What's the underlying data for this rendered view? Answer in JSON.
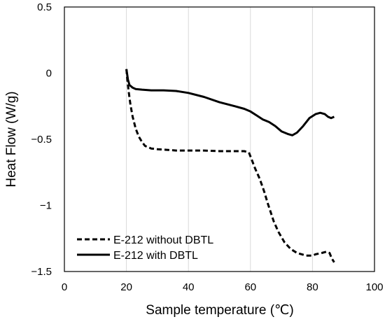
{
  "chart_data": {
    "type": "line",
    "xlabel": "Sample temperature (℃)",
    "ylabel": "Heat Flow (W/g)",
    "xlim": [
      0,
      100
    ],
    "ylim": [
      -1.5,
      0.5
    ],
    "x_ticks": [
      0,
      20,
      40,
      60,
      80,
      100
    ],
    "y_ticks": [
      -1.5,
      -1,
      -0.5,
      0,
      0.5
    ],
    "x_tick_labels": [
      "0",
      "20",
      "40",
      "60",
      "80",
      "100"
    ],
    "y_tick_labels": [
      "−1.5",
      "−1",
      "−0.5",
      "0",
      "0.5"
    ],
    "grid": "vertical",
    "legend_position": "bottom-left",
    "series": [
      {
        "name": "E-212 without DBTL",
        "style": "dashed",
        "color": "#000000",
        "x": [
          20.0,
          20.3,
          20.8,
          21.3,
          22.0,
          23.0,
          24.0,
          25.0,
          26.0,
          28.0,
          30.0,
          33.0,
          36.0,
          40.0,
          45.0,
          50.0,
          55.0,
          58.0,
          59.5,
          60.5,
          61.5,
          63.0,
          64.5,
          65.5,
          66.5,
          67.5,
          69.0,
          71.0,
          73.0,
          75.0,
          78.0,
          80.0,
          81.0,
          83.0,
          84.5,
          85.5,
          86.2,
          87.0
        ],
        "y": [
          0.03,
          -0.05,
          -0.15,
          -0.24,
          -0.33,
          -0.42,
          -0.48,
          -0.52,
          -0.55,
          -0.57,
          -0.575,
          -0.58,
          -0.585,
          -0.585,
          -0.585,
          -0.59,
          -0.59,
          -0.59,
          -0.6,
          -0.66,
          -0.72,
          -0.8,
          -0.9,
          -0.98,
          -1.05,
          -1.12,
          -1.2,
          -1.28,
          -1.33,
          -1.36,
          -1.38,
          -1.38,
          -1.37,
          -1.36,
          -1.35,
          -1.36,
          -1.4,
          -1.43
        ]
      },
      {
        "name": "E-212 with DBTL",
        "style": "solid",
        "color": "#000000",
        "x": [
          20.0,
          20.5,
          21.0,
          22.0,
          23.0,
          25.0,
          28.0,
          32.0,
          36.0,
          40.0,
          45.0,
          50.0,
          55.0,
          58.0,
          60.0,
          62.0,
          64.0,
          66.0,
          68.0,
          70.0,
          72.0,
          73.5,
          75.0,
          77.0,
          79.0,
          81.0,
          82.5,
          84.0,
          85.0,
          86.0,
          87.0
        ],
        "y": [
          0.03,
          -0.05,
          -0.09,
          -0.11,
          -0.12,
          -0.125,
          -0.13,
          -0.13,
          -0.135,
          -0.15,
          -0.18,
          -0.22,
          -0.25,
          -0.27,
          -0.29,
          -0.32,
          -0.35,
          -0.37,
          -0.4,
          -0.44,
          -0.46,
          -0.47,
          -0.45,
          -0.4,
          -0.34,
          -0.31,
          -0.3,
          -0.31,
          -0.33,
          -0.34,
          -0.33
        ]
      }
    ]
  }
}
